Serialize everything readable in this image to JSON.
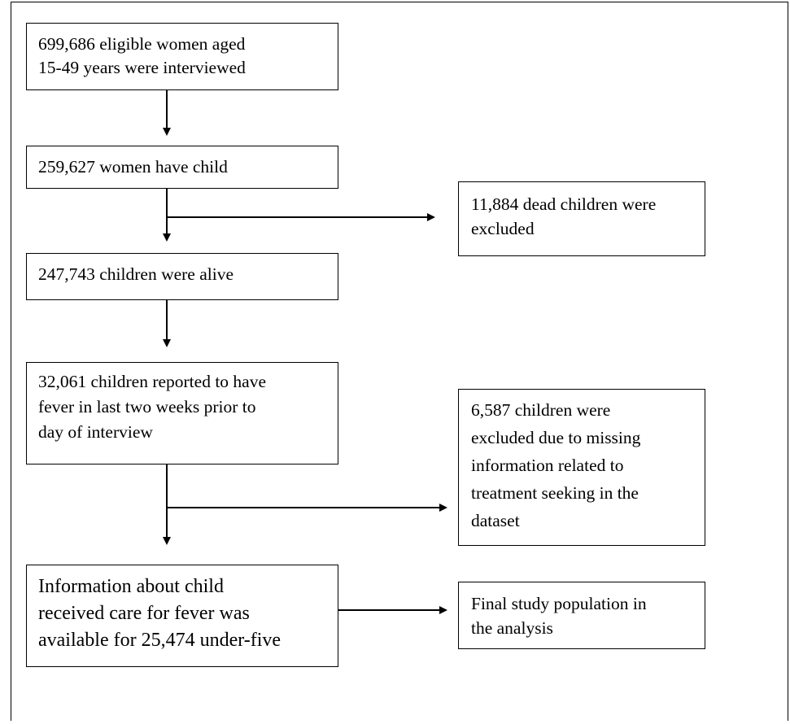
{
  "flowchart": {
    "main_steps": [
      {
        "lines": [
          "699,686 eligible women aged",
          "15-49 years were interviewed"
        ]
      },
      {
        "lines": [
          "259,627 women have child"
        ]
      },
      {
        "lines": [
          "247,743 children were alive"
        ]
      },
      {
        "lines": [
          "32,061 children reported to have",
          "fever in last two weeks prior to",
          "day of interview"
        ]
      },
      {
        "lines": [
          "Information about child",
          "received care for fever was",
          "available for 25,474 under-five"
        ]
      }
    ],
    "side_notes": [
      {
        "lines": [
          "11,884 dead children were",
          "excluded"
        ]
      },
      {
        "lines": [
          "6,587 children were",
          "excluded due to missing",
          "information related to",
          "treatment seeking in the",
          "dataset"
        ]
      },
      {
        "lines": [
          "Final study population in",
          "the analysis"
        ]
      }
    ]
  }
}
